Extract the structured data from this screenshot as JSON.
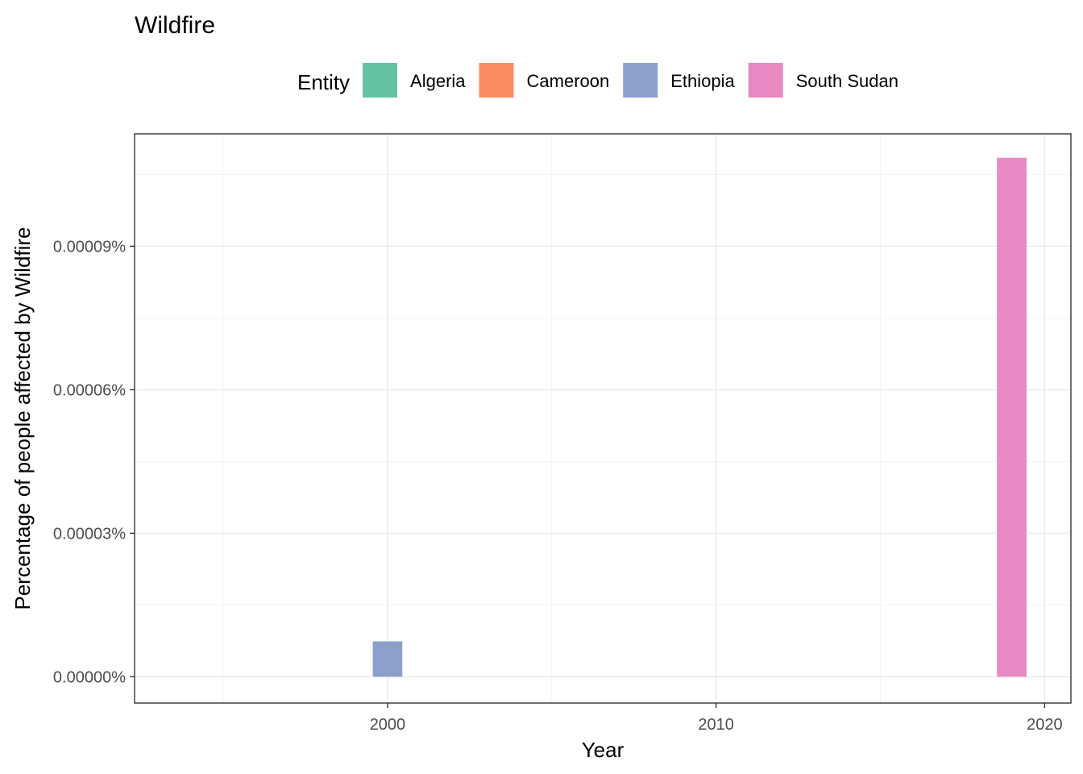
{
  "chart_data": {
    "type": "bar",
    "title": "Wildfire",
    "xlabel": "Year",
    "ylabel": "Percentage of people affected by Wildfire",
    "legend": {
      "title": "Entity",
      "placement": "top",
      "entries": [
        {
          "name": "Algeria",
          "color": "#66c2a5"
        },
        {
          "name": "Cameroon",
          "color": "#fc8d62"
        },
        {
          "name": "Ethiopia",
          "color": "#8da0cb"
        },
        {
          "name": "South Sudan",
          "color": "#e78ac3"
        }
      ]
    },
    "xlim": [
      1992.3,
      2020.8
    ],
    "ylim": [
      -5.5e-06,
      0.0001135
    ],
    "x_ticks": [
      2000,
      2010,
      2020
    ],
    "x_tick_labels": [
      "2000",
      "2010",
      "2020"
    ],
    "y_ticks": [
      0,
      3e-05,
      6e-05,
      9e-05
    ],
    "y_tick_labels": [
      "0.00000%",
      "0.00003%",
      "0.00006%",
      "0.00009%"
    ],
    "grid": true,
    "series": [
      {
        "name": "Algeria",
        "color": "#66c2a5",
        "points": []
      },
      {
        "name": "Cameroon",
        "color": "#fc8d62",
        "points": []
      },
      {
        "name": "Ethiopia",
        "color": "#8da0cb",
        "points": [
          {
            "x": 2000,
            "y": 7.4e-06
          }
        ]
      },
      {
        "name": "South Sudan",
        "color": "#e78ac3",
        "points": [
          {
            "x": 2019,
            "y": 0.0001085
          }
        ]
      }
    ]
  }
}
